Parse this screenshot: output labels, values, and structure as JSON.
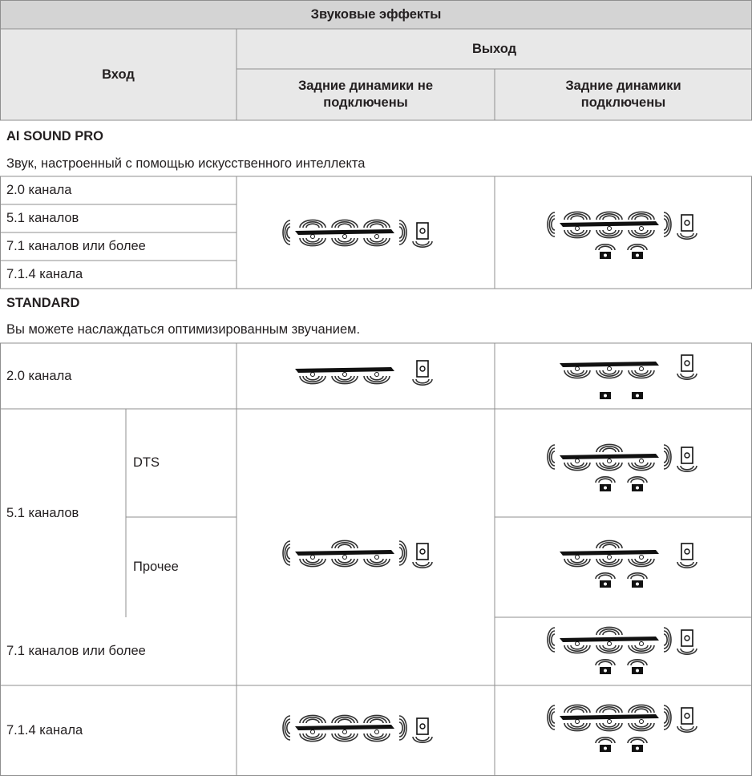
{
  "header": {
    "title": "Звуковые эффекты",
    "input": "Вход",
    "output": "Выход",
    "rear_not_connected": "Задние динамики не подключены",
    "rear_connected": "Задние динамики подключены"
  },
  "sections": [
    {
      "title": "AI SOUND PRO",
      "description": "Звук, настроенный с помощью искусственного интеллекта",
      "rows": [
        "2.0 канала",
        "5.1 каналов",
        "7.1 каналов или более",
        "7.1.4 канала"
      ]
    },
    {
      "title": "STANDARD",
      "description": "Вы можете наслаждаться оптимизированным звучанием.",
      "rows": [
        {
          "label": "2.0 канала"
        },
        {
          "label": "5.1 каналов",
          "sub": [
            "DTS",
            "Прочее"
          ]
        },
        {
          "label": "7.1 каналов или более"
        },
        {
          "label": "7.1.4 канала"
        }
      ]
    }
  ]
}
